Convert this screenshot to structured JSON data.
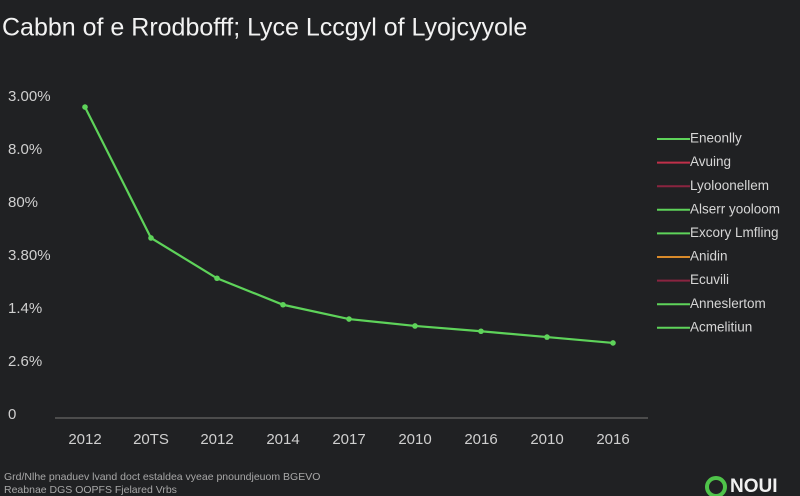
{
  "chart_data": {
    "type": "line",
    "title": "Cabbn of e Rrodbofff; Lyce Lccgyl of Lyojcyyole",
    "categories": [
      "2012",
      "20TS",
      "2012",
      "2014",
      "2017",
      "2010",
      "2016",
      "2010",
      "2016"
    ],
    "series": [
      {
        "color": "#5ed35a",
        "values": [
          5.81,
          3.34,
          2.58,
          2.08,
          1.81,
          1.68,
          1.58,
          1.47,
          1.36
        ]
      }
    ],
    "ylim": [
      0,
      6
    ],
    "yticks": [
      {
        "value": 0,
        "label": "0"
      },
      {
        "value": 1,
        "label": "2.6%"
      },
      {
        "value": 2,
        "label": "1.4%"
      },
      {
        "value": 3,
        "label": "3.80%"
      },
      {
        "value": 4,
        "label": "80%"
      },
      {
        "value": 5,
        "label": "8.0%"
      },
      {
        "value": 6,
        "label": "3.00%"
      }
    ],
    "legend": [
      {
        "name": "Eneonlly",
        "color": "#5ed35a"
      },
      {
        "name": "Avuing",
        "color": "#c0304a"
      },
      {
        "name": "Lyoloonellem",
        "color": "#8a2440"
      },
      {
        "name": "Alserr yooloom",
        "color": "#5ed35a"
      },
      {
        "name": "Excory Lmfling",
        "color": "#5ed35a"
      },
      {
        "name": "Anidin",
        "color": "#d98a2a"
      },
      {
        "name": "Ecuvili",
        "color": "#8a2440"
      },
      {
        "name": "Anneslertom",
        "color": "#5ed35a"
      },
      {
        "name": "Acmelitiun",
        "color": "#5ed35a"
      }
    ]
  },
  "footer": [
    "Grd/Nlhe pnaduev lvand doct estaldea vyeae pnoundjeuom BGEVO",
    "Reabnae DGS OOPFS Fjelared Vrbs"
  ],
  "logo": "NOUI"
}
